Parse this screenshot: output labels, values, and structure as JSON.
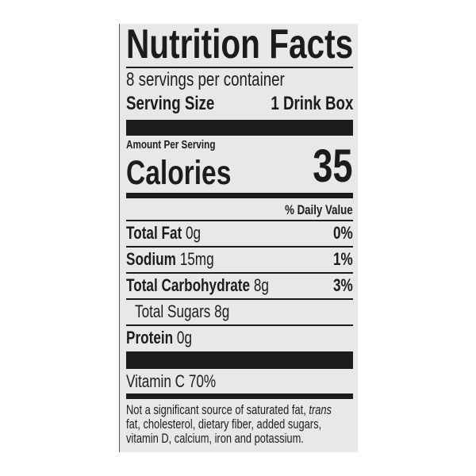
{
  "title": "Nutrition Facts",
  "servings_per_container": "8 servings per container",
  "serving_size": {
    "label": "Serving Size",
    "value": "1 Drink Box"
  },
  "amount_per_serving": "Amount Per Serving",
  "calories": {
    "label": "Calories",
    "value": "35"
  },
  "daily_value_header": "% Daily Value",
  "nutrients": [
    {
      "name": "Total Fat",
      "amount": "0g",
      "dv": "0%"
    },
    {
      "name": "Sodium",
      "amount": "15mg",
      "dv": "1%"
    },
    {
      "name": "Total Carbohydrate",
      "amount": "8g",
      "dv": "3%"
    },
    {
      "name": "Total Sugars 8g"
    },
    {
      "name": "Protein",
      "amount": "0g"
    }
  ],
  "vitamin_c": "Vitamin C 70%",
  "footnote": {
    "line1": "Not a significant source of saturated fat,",
    "line1_italic": "trans",
    "line2": "fat, cholesterol, dietary fiber, added sugars,",
    "line3": "vitamin D, calcium, iron and potassium."
  }
}
